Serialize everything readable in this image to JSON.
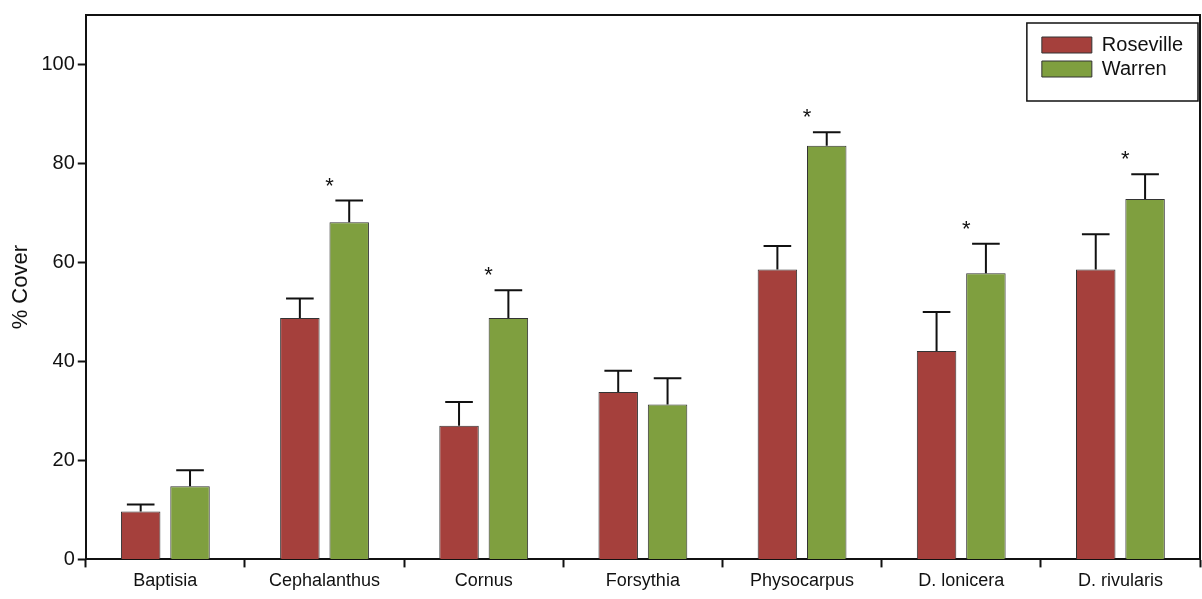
{
  "chart_data": {
    "type": "bar",
    "ylabel": "% Cover",
    "categories": [
      "Baptisia",
      "Cephalanthus",
      "Cornus",
      "Forsythia",
      "Physocarpus",
      "D. lonicera",
      "D. rivularis"
    ],
    "series": [
      {
        "name": "Roseville",
        "color": "#a5403c",
        "values": [
          9.7,
          48.8,
          27.0,
          33.8,
          58.6,
          42.1,
          58.6
        ],
        "errors": [
          [
            9.7,
            11.1
          ],
          [
            48.8,
            52.7
          ],
          [
            27.0,
            31.8
          ],
          [
            33.8,
            38.1
          ],
          [
            58.6,
            63.3
          ],
          [
            42.1,
            50.0
          ],
          [
            58.6,
            65.7
          ]
        ]
      },
      {
        "name": "Warren",
        "color": "#7f9f3f",
        "values": [
          14.8,
          68.1,
          48.8,
          31.3,
          83.6,
          57.8,
          72.8
        ],
        "value_labels": [
          null,
          "*",
          "*",
          null,
          "*",
          "*",
          "*"
        ],
        "errors": [
          [
            14.8,
            18.0
          ],
          [
            68.1,
            72.5
          ],
          [
            48.8,
            54.4
          ],
          [
            31.3,
            36.6
          ],
          [
            83.6,
            86.3
          ],
          [
            57.8,
            63.8
          ],
          [
            72.8,
            77.8
          ]
        ]
      }
    ],
    "ylim": [
      0,
      110
    ],
    "yticks": [
      0,
      20,
      40,
      60,
      80,
      100
    ],
    "grid": false,
    "legend": "top right"
  }
}
